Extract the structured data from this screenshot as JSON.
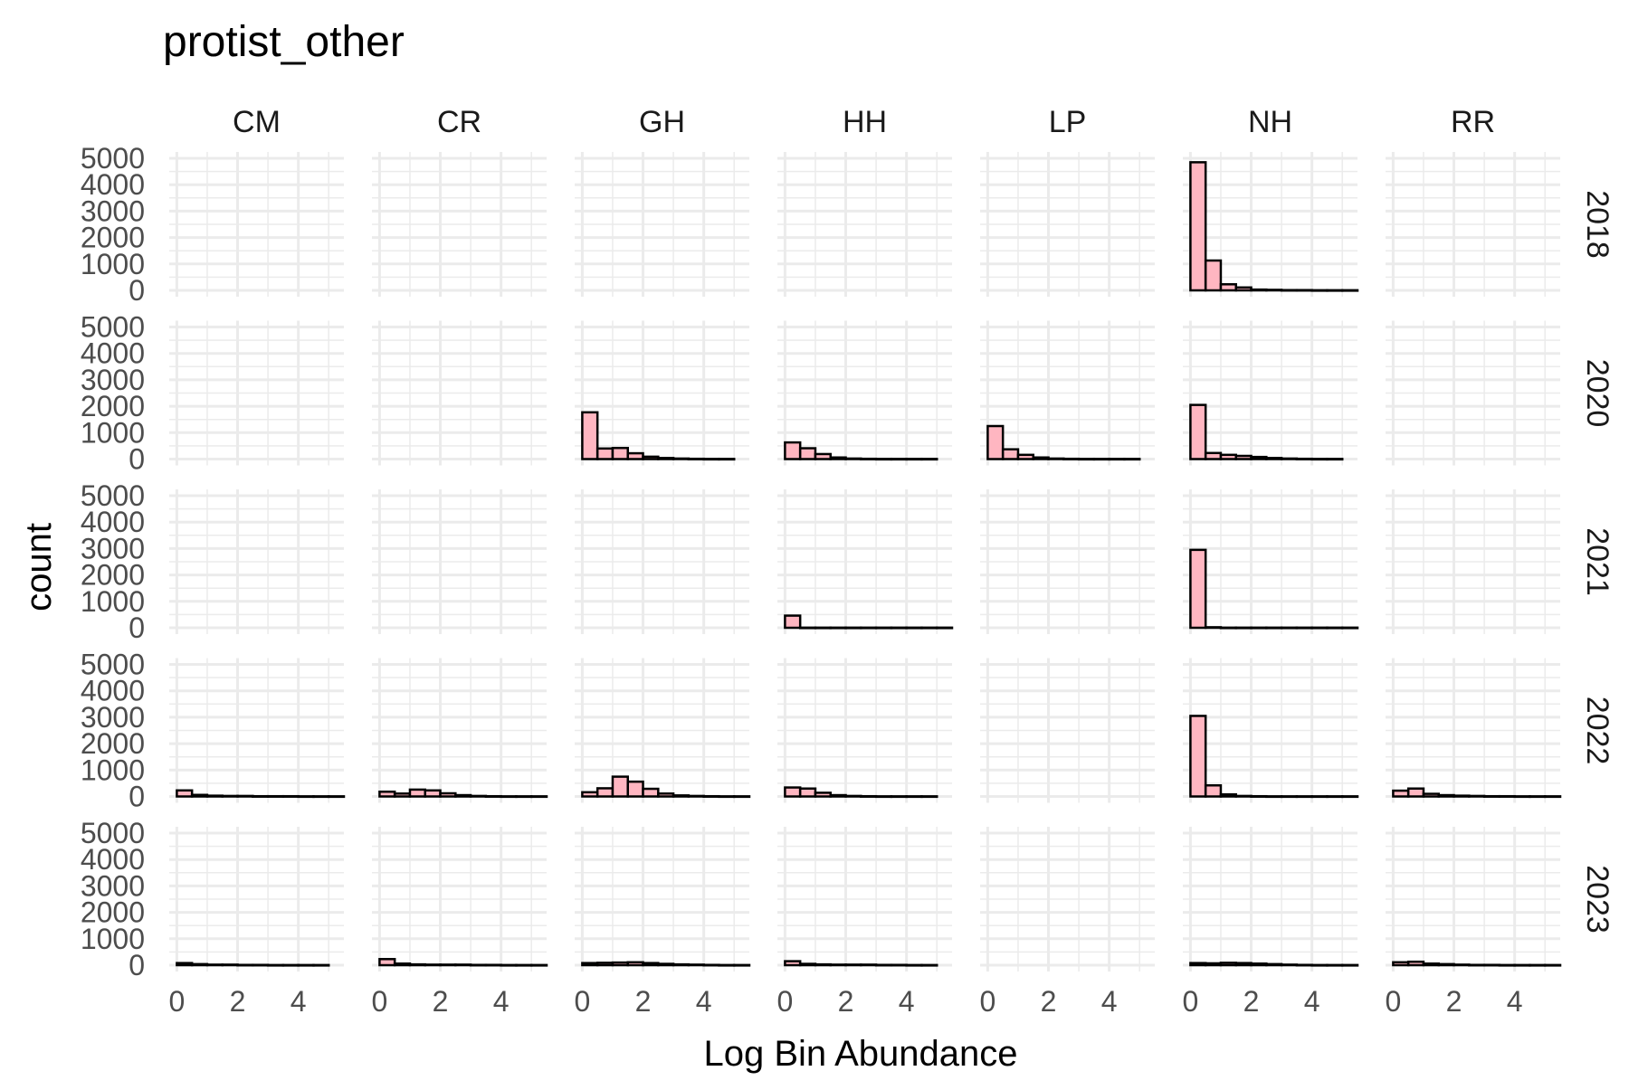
{
  "chart_data": {
    "type": "bar",
    "title": "protist_other",
    "xlabel": "Log Bin Abundance",
    "ylabel": "count",
    "facet_columns": [
      "CM",
      "CR",
      "GH",
      "HH",
      "LP",
      "NH",
      "RR"
    ],
    "facet_rows": [
      "2018",
      "2020",
      "2021",
      "2022",
      "2023"
    ],
    "xlim": [
      -0.25,
      5.5
    ],
    "ylim": [
      0,
      5000
    ],
    "x_ticks": [
      0,
      2,
      4
    ],
    "y_ticks": [
      0,
      1000,
      2000,
      3000,
      4000,
      5000
    ],
    "bin_width": 0.5,
    "grid": true,
    "colors": {
      "fill": "#ffb6c1",
      "stroke": "#000000",
      "grid": "#ebebeb",
      "text": "#4d4d4d"
    },
    "panels": {
      "2018": {
        "CM": null,
        "CR": null,
        "GH": null,
        "HH": null,
        "LP": null,
        "NH": [
          4850,
          1130,
          230,
          110,
          30,
          20,
          10,
          10,
          5,
          5,
          5
        ],
        "RR": null
      },
      "2020": {
        "CM": null,
        "CR": null,
        "GH": [
          1770,
          400,
          420,
          220,
          90,
          40,
          20,
          10,
          5,
          5
        ],
        "HH": [
          630,
          410,
          190,
          60,
          20,
          10,
          5,
          5,
          5,
          5
        ],
        "LP": [
          1250,
          370,
          160,
          60,
          20,
          10,
          5,
          5,
          5,
          5
        ],
        "NH": [
          2050,
          230,
          160,
          120,
          80,
          40,
          20,
          10,
          5,
          5
        ],
        "RR": null
      },
      "2021": {
        "CM": null,
        "CR": null,
        "GH": null,
        "HH": [
          460,
          5,
          5,
          5,
          5,
          5,
          5,
          5,
          5,
          5,
          5
        ],
        "LP": null,
        "NH": [
          2950,
          20,
          5,
          5,
          5,
          5,
          5,
          5,
          5,
          5,
          5
        ],
        "RR": null
      },
      "2022": {
        "CM": [
          230,
          60,
          30,
          20,
          20,
          10,
          10,
          10,
          5,
          5,
          5
        ],
        "CR": [
          180,
          110,
          260,
          230,
          120,
          50,
          20,
          10,
          5,
          5,
          5
        ],
        "GH": [
          160,
          310,
          750,
          560,
          290,
          110,
          40,
          20,
          10,
          5,
          5
        ],
        "HH": [
          340,
          300,
          140,
          50,
          20,
          10,
          5,
          5,
          5,
          5
        ],
        "LP": null,
        "NH": [
          3050,
          420,
          80,
          20,
          10,
          5,
          5,
          5,
          5,
          5,
          5
        ],
        "RR": [
          220,
          300,
          100,
          50,
          30,
          20,
          10,
          10,
          5,
          5,
          5
        ]
      },
      "2023": {
        "CM": [
          80,
          40,
          20,
          20,
          10,
          10,
          5,
          5,
          5,
          5
        ],
        "CR": [
          230,
          60,
          30,
          20,
          20,
          20,
          10,
          10,
          5,
          5,
          5
        ],
        "GH": [
          80,
          90,
          100,
          110,
          80,
          50,
          30,
          20,
          10,
          5,
          5
        ],
        "HH": [
          150,
          50,
          30,
          20,
          20,
          20,
          10,
          10,
          5,
          5
        ],
        "LP": null,
        "NH": [
          80,
          70,
          90,
          80,
          60,
          40,
          20,
          10,
          5,
          5,
          5
        ],
        "RR": [
          110,
          130,
          60,
          40,
          20,
          10,
          10,
          5,
          5,
          5,
          5
        ]
      }
    }
  }
}
